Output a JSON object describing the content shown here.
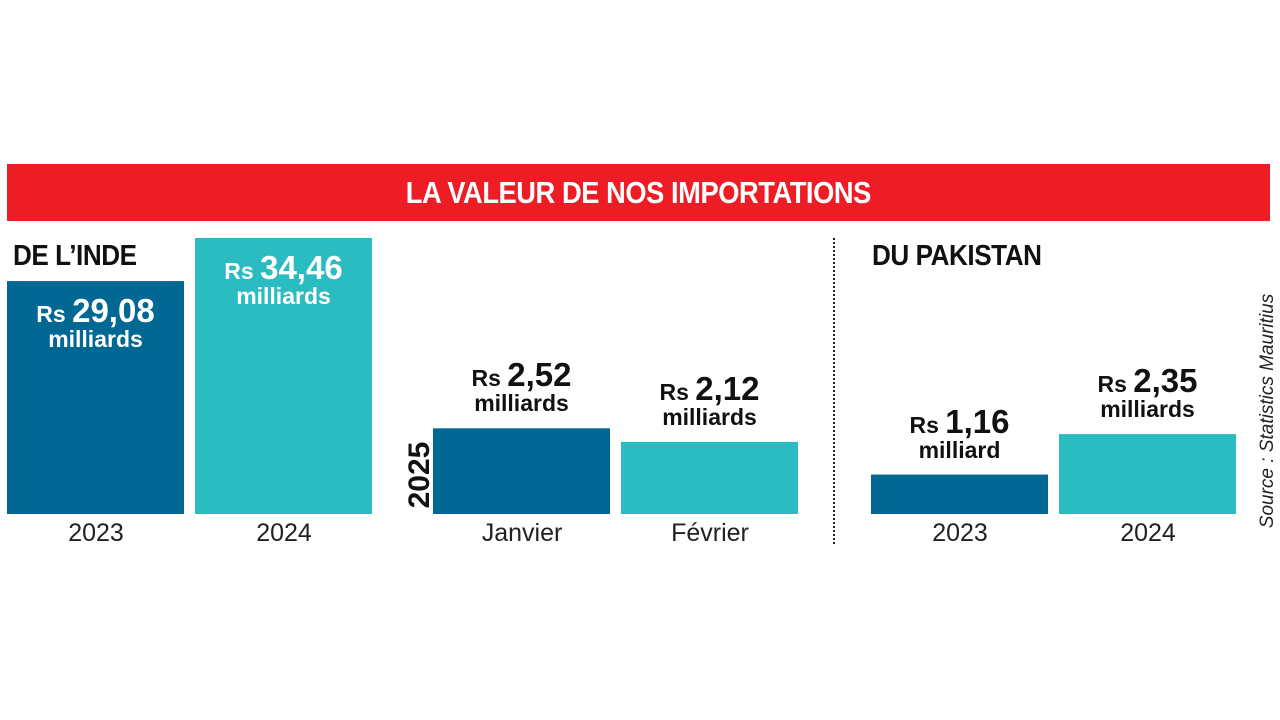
{
  "chart_data": {
    "type": "bar",
    "title": "LA VALEUR DE NOS IMPORTATIONS",
    "ylabel": "Rs milliards",
    "ylim": [
      0,
      34.46
    ],
    "colors": {
      "dark": "#006893",
      "light": "#2bbcc1",
      "banner": "#ee1c25"
    },
    "panels": [
      {
        "title": "DE L’INDE",
        "bars": [
          {
            "category": "2023",
            "value": 29.08,
            "currency": "Rs",
            "display": "29,08",
            "unit": "milliards",
            "color": "dark",
            "label_position": "inside"
          },
          {
            "category": "2024",
            "value": 34.46,
            "currency": "Rs",
            "display": "34,46",
            "unit": "milliards",
            "color": "light",
            "label_position": "inside"
          }
        ]
      },
      {
        "title": "",
        "side_label": "2025",
        "bars": [
          {
            "category": "Janvier",
            "value": 2.52,
            "currency": "Rs",
            "display": "2,52",
            "unit": "milliards",
            "color": "dark",
            "label_position": "above"
          },
          {
            "category": "Février",
            "value": 2.12,
            "currency": "Rs",
            "display": "2,12",
            "unit": "milliards",
            "color": "light",
            "label_position": "above"
          }
        ]
      },
      {
        "title": "DU PAKISTAN",
        "bars": [
          {
            "category": "2023",
            "value": 1.16,
            "currency": "Rs",
            "display": "1,16",
            "unit": "milliard",
            "color": "dark",
            "label_position": "above"
          },
          {
            "category": "2024",
            "value": 2.35,
            "currency": "Rs",
            "display": "2,35",
            "unit": "milliards",
            "color": "light",
            "label_position": "above"
          }
        ]
      }
    ],
    "source": "Source : Statistics Mauritius"
  }
}
